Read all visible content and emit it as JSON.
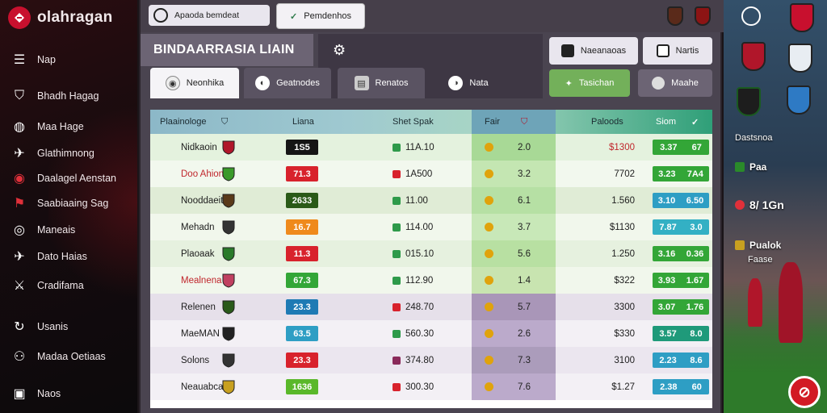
{
  "brand": {
    "name": "olahragan"
  },
  "sidebar": {
    "items": [
      {
        "label": "Nap",
        "icon": "menu-icon"
      },
      {
        "label": "Bhadh Hagag",
        "icon": "shield-icon"
      },
      {
        "label": "Maa Hage",
        "icon": "ball-icon"
      },
      {
        "label": "Glathimnong",
        "icon": "bird-icon"
      },
      {
        "label": "Daalagel Aenstan",
        "icon": "red-badge-icon"
      },
      {
        "label": "Saabiaaing Sag",
        "icon": "flag-icon"
      },
      {
        "label": "Maneais",
        "icon": "globe-icon"
      },
      {
        "label": "Dato Haias",
        "icon": "bird-icon"
      },
      {
        "label": "Cradifama",
        "icon": "swords-icon"
      },
      {
        "label": "Usanis",
        "icon": "refresh-icon"
      },
      {
        "label": "Madaa Oetiaas",
        "icon": "people-icon"
      },
      {
        "label": "Naos",
        "icon": "chat-icon"
      }
    ]
  },
  "topbar": {
    "search_placeholder": "Apaoda bemdeat",
    "filter_button": "Pemdenhos"
  },
  "title": "BINDAARRASIA LIAIN",
  "tabs": [
    {
      "label": "Neonhika"
    },
    {
      "label": "Geatnodes"
    },
    {
      "label": "Renatos"
    },
    {
      "label": "Nata"
    }
  ],
  "actions": [
    {
      "label": "Naeanaoas"
    },
    {
      "label": "Nartis"
    },
    {
      "label": "Tasichan"
    },
    {
      "label": "Maahe"
    }
  ],
  "table": {
    "headers": {
      "name": "Plaainologe",
      "league": "Liana",
      "spread": "Shet Spak",
      "fair": "Fair",
      "payout": "Paloods",
      "score": "Siom"
    },
    "rows": [
      {
        "name": "Nidkaoin",
        "name_color": "#1d1d1d",
        "pill": "1S5",
        "pill_color": "#151515",
        "spread": "11A.10",
        "spread_color": "#2e9a4a",
        "fair": "2.0",
        "payout": "$1300",
        "payout_color": "#c0262c",
        "score_a": "3.37",
        "score_b": "67",
        "score_color": "#33a637",
        "bg": "#e4f2de",
        "fair_bg": "#a8d996"
      },
      {
        "name": "Doo Ahione",
        "name_color": "#c0262c",
        "pill": "71.3",
        "pill_color": "#d8222c",
        "spread": "1A500",
        "spread_color": "#d8222c",
        "fair": "3.2",
        "payout": "7702",
        "payout_color": "#1d1d1d",
        "score_a": "3.23",
        "score_b": "7A4",
        "score_color": "#33a637",
        "bg": "#f2f8ee",
        "fair_bg": "#c4e6b2"
      },
      {
        "name": "Nooddaeit",
        "name_color": "#1d1d1d",
        "pill": "2633",
        "pill_color": "#2a5a18",
        "spread": "11.00",
        "spread_color": "#2e9a4a",
        "fair": "6.1",
        "payout": "1.560",
        "payout_color": "#1d1d1d",
        "score_a": "3.10",
        "score_b": "6.50",
        "score_color": "#2e9ec4",
        "bg": "#e0ecd6",
        "fair_bg": "#b6e0a4"
      },
      {
        "name": "Mehadn",
        "name_color": "#1d1d1d",
        "pill": "16.7",
        "pill_color": "#ef8a1c",
        "spread": "114.00",
        "spread_color": "#2e9a4a",
        "fair": "3.7",
        "payout": "$1130",
        "payout_color": "#1d1d1d",
        "score_a": "7.87",
        "score_b": "3.0",
        "score_color": "#33b0c4",
        "bg": "#f1f7ec",
        "fair_bg": "#c8e8b8"
      },
      {
        "name": "Plaoaak",
        "name_color": "#1d1d1d",
        "pill": "11.3",
        "pill_color": "#d8222c",
        "spread": "015.10",
        "spread_color": "#2e9a4a",
        "fair": "5.6",
        "payout": "1.250",
        "payout_color": "#1d1d1d",
        "score_a": "3.16",
        "score_b": "0.36",
        "score_color": "#33a637",
        "bg": "#e6f1df",
        "fair_bg": "#b8e0a2"
      },
      {
        "name": "Mealnena",
        "name_color": "#c0262c",
        "pill": "67.3",
        "pill_color": "#33a637",
        "spread": "112.90",
        "spread_color": "#2e9a4a",
        "fair": "1.4",
        "payout": "$322",
        "payout_color": "#1d1d1d",
        "score_a": "3.93",
        "score_b": "1.67",
        "score_color": "#33a637",
        "bg": "#f1f7ec",
        "fair_bg": "#c8e4b0"
      },
      {
        "name": "Relenen",
        "name_color": "#1d1d1d",
        "pill": "23.3",
        "pill_color": "#1e7ab4",
        "spread": "248.70",
        "spread_color": "#d8222c",
        "fair": "5.7",
        "payout": "3300",
        "payout_color": "#1d1d1d",
        "score_a": "3.07",
        "score_b": "1.76",
        "score_color": "#33a637",
        "bg": "#e6e0ea",
        "fair_bg": "#a996b8"
      },
      {
        "name": "MaeMAN",
        "name_color": "#1d1d1d",
        "pill": "63.5",
        "pill_color": "#2e9ec4",
        "spread": "560.30",
        "spread_color": "#2e9a4a",
        "fair": "2.6",
        "payout": "$330",
        "payout_color": "#1d1d1d",
        "score_a": "3.57",
        "score_b": "8.0",
        "score_color": "#1f9a7a",
        "bg": "#f3f0f5",
        "fair_bg": "#bbaacb"
      },
      {
        "name": "Solons",
        "name_color": "#1d1d1d",
        "pill": "23.3",
        "pill_color": "#d8222c",
        "spread": "374.80",
        "spread_color": "#8a2a5a",
        "fair": "7.3",
        "payout": "3100",
        "payout_color": "#1d1d1d",
        "score_a": "2.23",
        "score_b": "8.6",
        "score_color": "#2e9ec4",
        "bg": "#ebe6ef",
        "fair_bg": "#ab9cbb"
      },
      {
        "name": "Neauabcas",
        "name_color": "#1d1d1d",
        "pill": "1636",
        "pill_color": "#5ab82a",
        "spread": "300.30",
        "spread_color": "#d8222c",
        "fair": "7.6",
        "payout": "$1.27",
        "payout_color": "#1d1d1d",
        "score_a": "2.38",
        "score_b": "60",
        "score_color": "#2e9ec4",
        "bg": "#f3f0f5",
        "fair_bg": "#bbaacb"
      }
    ]
  },
  "right_panel": {
    "label_1": "Dastsnoa",
    "label_2": "Paa",
    "label_3": "8/ 1Gn",
    "label_4": "Pualok",
    "label_5": "Faase"
  },
  "colors": {
    "accent_red": "#c8102e",
    "header_teal": "#9fc9d0",
    "header_green": "#2f9f78"
  }
}
